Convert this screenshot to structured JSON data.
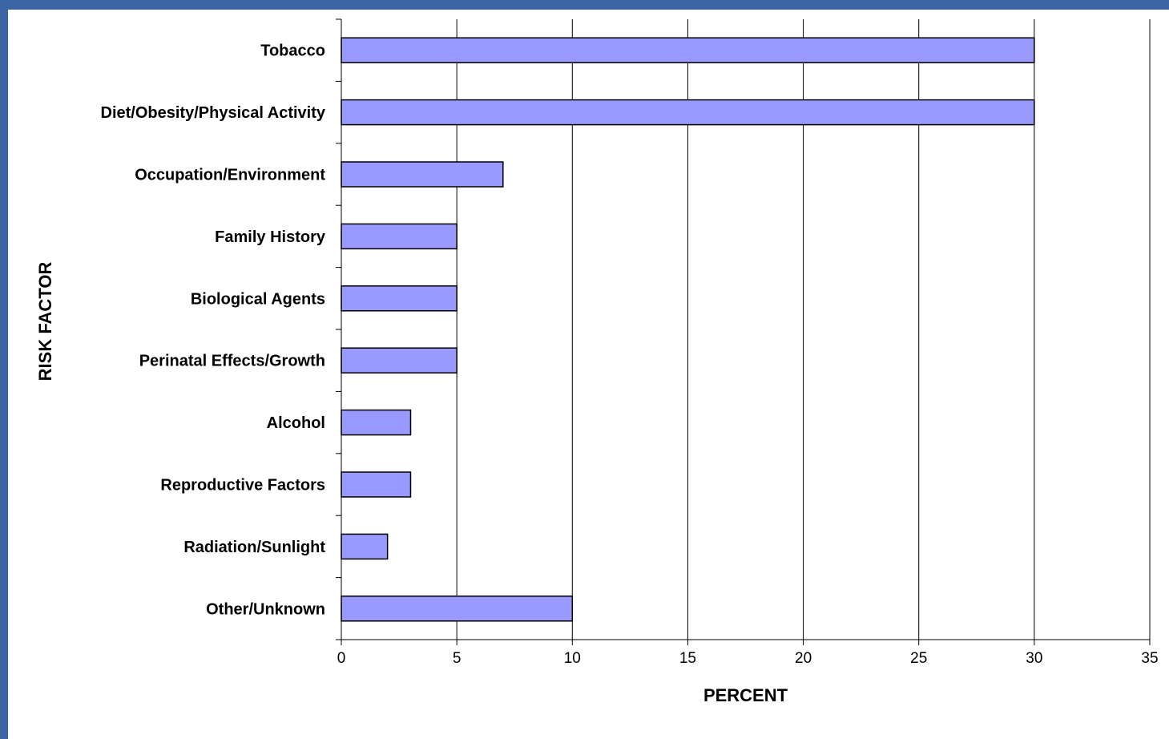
{
  "chart_data": {
    "type": "bar",
    "orientation": "horizontal",
    "categories": [
      "Tobacco",
      "Diet/Obesity/Physical Activity",
      "Occupation/Environment",
      "Family History",
      "Biological Agents",
      "Perinatal Effects/Growth",
      "Alcohol",
      "Reproductive Factors",
      "Radiation/Sunlight",
      "Other/Unknown"
    ],
    "values": [
      30,
      30,
      7,
      5,
      5,
      5,
      3,
      3,
      2,
      10
    ],
    "title": "",
    "xlabel": "PERCENT",
    "ylabel": "RISK FACTOR",
    "xlim": [
      0,
      35
    ],
    "xticks": [
      "0",
      "5",
      "10",
      "15",
      "20",
      "25",
      "30",
      "35"
    ],
    "grid": "vertical",
    "legend": "none",
    "colors": {
      "bar_fill": "#9999ff",
      "bar_stroke": "#000000",
      "frame_background": "#3a64a4",
      "plot_background": "#ffffff"
    }
  }
}
